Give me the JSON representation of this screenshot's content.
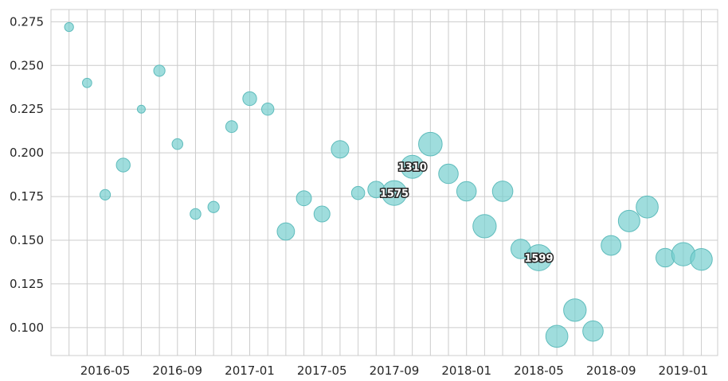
{
  "chart_data": {
    "type": "scatter",
    "title": "",
    "xlabel": "",
    "ylabel": "",
    "x_ticks": [
      "2016-05",
      "2016-09",
      "2017-01",
      "2017-05",
      "2017-09",
      "2018-01",
      "2018-05",
      "2018-09",
      "2019-01"
    ],
    "y_ticks": [
      "0.100",
      "0.125",
      "0.150",
      "0.175",
      "0.200",
      "0.225",
      "0.250",
      "0.275"
    ],
    "ylim": [
      0.084,
      0.282
    ],
    "xlim": [
      "2016-02-01",
      "2019-02-28"
    ],
    "grid": true,
    "marker_color": "#76cfcf",
    "marker_edge_color": "#5fbcbc",
    "points": [
      {
        "x": "2016-03",
        "y": 0.272,
        "size": 70,
        "label": ""
      },
      {
        "x": "2016-04",
        "y": 0.24,
        "size": 75,
        "label": ""
      },
      {
        "x": "2016-05",
        "y": 0.176,
        "size": 95,
        "label": ""
      },
      {
        "x": "2016-06",
        "y": 0.193,
        "size": 165,
        "label": ""
      },
      {
        "x": "2016-07",
        "y": 0.225,
        "size": 55,
        "label": ""
      },
      {
        "x": "2016-08",
        "y": 0.247,
        "size": 110,
        "label": ""
      },
      {
        "x": "2016-09",
        "y": 0.205,
        "size": 100,
        "label": ""
      },
      {
        "x": "2016-10",
        "y": 0.165,
        "size": 100,
        "label": ""
      },
      {
        "x": "2016-11",
        "y": 0.169,
        "size": 110,
        "label": ""
      },
      {
        "x": "2016-12",
        "y": 0.215,
        "size": 120,
        "label": ""
      },
      {
        "x": "2017-01",
        "y": 0.231,
        "size": 165,
        "label": ""
      },
      {
        "x": "2017-02",
        "y": 0.225,
        "size": 130,
        "label": ""
      },
      {
        "x": "2017-03",
        "y": 0.155,
        "size": 260,
        "label": ""
      },
      {
        "x": "2017-04",
        "y": 0.174,
        "size": 195,
        "label": ""
      },
      {
        "x": "2017-05",
        "y": 0.165,
        "size": 220,
        "label": ""
      },
      {
        "x": "2017-06",
        "y": 0.202,
        "size": 265,
        "label": ""
      },
      {
        "x": "2017-07",
        "y": 0.177,
        "size": 150,
        "label": ""
      },
      {
        "x": "2017-08",
        "y": 0.179,
        "size": 240,
        "label": ""
      },
      {
        "x": "2017-09",
        "y": 0.177,
        "size": 530,
        "label": "1575"
      },
      {
        "x": "2017-10",
        "y": 0.192,
        "size": 460,
        "label": "1310"
      },
      {
        "x": "2017-11",
        "y": 0.205,
        "size": 480,
        "label": ""
      },
      {
        "x": "2017-12",
        "y": 0.188,
        "size": 330,
        "label": ""
      },
      {
        "x": "2018-01",
        "y": 0.178,
        "size": 330,
        "label": ""
      },
      {
        "x": "2018-02",
        "y": 0.158,
        "size": 470,
        "label": ""
      },
      {
        "x": "2018-03",
        "y": 0.178,
        "size": 360,
        "label": ""
      },
      {
        "x": "2018-04",
        "y": 0.145,
        "size": 330,
        "label": ""
      },
      {
        "x": "2018-05",
        "y": 0.14,
        "size": 590,
        "label": "1599"
      },
      {
        "x": "2018-06",
        "y": 0.095,
        "size": 420,
        "label": ""
      },
      {
        "x": "2018-07",
        "y": 0.11,
        "size": 440,
        "label": ""
      },
      {
        "x": "2018-08",
        "y": 0.098,
        "size": 360,
        "label": ""
      },
      {
        "x": "2018-09",
        "y": 0.147,
        "size": 340,
        "label": ""
      },
      {
        "x": "2018-10",
        "y": 0.161,
        "size": 400,
        "label": ""
      },
      {
        "x": "2018-11",
        "y": 0.169,
        "size": 420,
        "label": ""
      },
      {
        "x": "2018-12",
        "y": 0.14,
        "size": 300,
        "label": ""
      },
      {
        "x": "2019-01",
        "y": 0.142,
        "size": 470,
        "label": ""
      },
      {
        "x": "2019-02",
        "y": 0.139,
        "size": 410,
        "label": ""
      }
    ]
  }
}
